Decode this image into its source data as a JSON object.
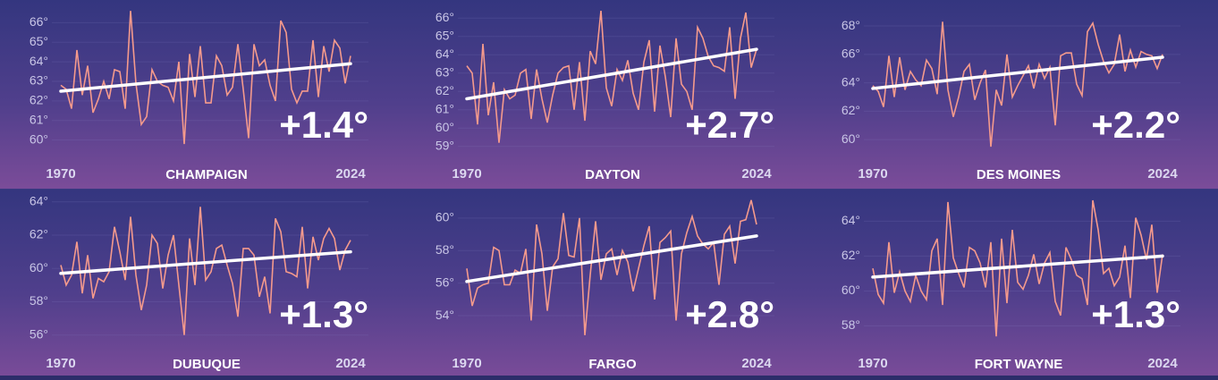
{
  "chart_data": [
    {
      "type": "line",
      "title": "CHAMPAIGN",
      "annotation": "+1.4°",
      "x": [
        1970,
        1971,
        1972,
        1973,
        1974,
        1975,
        1976,
        1977,
        1978,
        1979,
        1980,
        1981,
        1982,
        1983,
        1984,
        1985,
        1986,
        1987,
        1988,
        1989,
        1990,
        1991,
        1992,
        1993,
        1994,
        1995,
        1996,
        1997,
        1998,
        1999,
        2000,
        2001,
        2002,
        2003,
        2004,
        2005,
        2006,
        2007,
        2008,
        2009,
        2010,
        2011,
        2012,
        2013,
        2014,
        2015,
        2016,
        2017,
        2018,
        2019,
        2020,
        2021,
        2022,
        2023,
        2024
      ],
      "series": [
        {
          "color": "#f59a8c",
          "values": [
            62.8,
            62.6,
            61.6,
            64.6,
            62.3,
            63.8,
            61.4,
            62.1,
            63.0,
            62.1,
            63.6,
            63.5,
            61.6,
            66.6,
            62.9,
            60.8,
            61.2,
            63.6,
            63.0,
            62.8,
            62.7,
            62.0,
            64.0,
            59.8,
            64.4,
            62.2,
            64.8,
            61.9,
            61.9,
            64.3,
            63.8,
            62.3,
            62.7,
            64.9,
            62.6,
            60.1,
            64.9,
            63.8,
            64.1,
            62.8,
            62.0,
            66.1,
            65.5,
            62.6,
            61.9,
            62.5,
            62.5,
            65.1,
            62.2,
            64.8,
            63.5,
            65.1,
            64.7,
            62.9,
            64.3
          ]
        }
      ],
      "trend": {
        "x": [
          1970,
          2024
        ],
        "values": [
          62.5,
          63.9
        ],
        "color": "#ffffff"
      },
      "xlim": [
        1970,
        2024
      ],
      "xticks": [
        1970,
        2024
      ],
      "ylim": [
        59.3,
        66.7
      ],
      "yticks": [
        {
          "value": 60,
          "label": "60°"
        },
        {
          "value": 61,
          "label": "61°"
        },
        {
          "value": 62,
          "label": "62°"
        },
        {
          "value": 63,
          "label": "63°"
        },
        {
          "value": 64,
          "label": "64°"
        },
        {
          "value": 65,
          "label": "65°"
        },
        {
          "value": 66,
          "label": "66°"
        }
      ],
      "grid": true
    },
    {
      "type": "line",
      "title": "DAYTON",
      "annotation": "+2.7°",
      "x": [
        1970,
        1971,
        1972,
        1973,
        1974,
        1975,
        1976,
        1977,
        1978,
        1979,
        1980,
        1981,
        1982,
        1983,
        1984,
        1985,
        1986,
        1987,
        1988,
        1989,
        1990,
        1991,
        1992,
        1993,
        1994,
        1995,
        1996,
        1997,
        1998,
        1999,
        2000,
        2001,
        2002,
        2003,
        2004,
        2005,
        2006,
        2007,
        2008,
        2009,
        2010,
        2011,
        2012,
        2013,
        2014,
        2015,
        2016,
        2017,
        2018,
        2019,
        2020,
        2021,
        2022,
        2023,
        2024
      ],
      "series": [
        {
          "color": "#f59a8c",
          "values": [
            63.4,
            63.0,
            60.2,
            64.6,
            60.7,
            62.5,
            59.2,
            62.1,
            61.6,
            61.8,
            63.0,
            63.2,
            60.5,
            63.2,
            61.6,
            60.3,
            61.8,
            63.0,
            63.3,
            63.4,
            61.0,
            63.6,
            60.4,
            64.2,
            63.5,
            66.4,
            62.2,
            61.2,
            63.2,
            62.6,
            63.7,
            61.9,
            61.0,
            63.6,
            64.8,
            60.9,
            64.5,
            62.8,
            60.6,
            64.9,
            62.4,
            62.0,
            61.0,
            65.5,
            64.9,
            63.9,
            63.4,
            63.3,
            63.1,
            65.5,
            61.6,
            64.9,
            66.3,
            63.3,
            64.3
          ]
        }
      ],
      "trend": {
        "x": [
          1970,
          2024
        ],
        "values": [
          61.6,
          64.3
        ],
        "color": "#ffffff"
      },
      "xlim": [
        1970,
        2024
      ],
      "xticks": [
        1970,
        2024
      ],
      "ylim": [
        58.6,
        66.5
      ],
      "yticks": [
        {
          "value": 59,
          "label": "59°"
        },
        {
          "value": 60,
          "label": "60°"
        },
        {
          "value": 61,
          "label": "61°"
        },
        {
          "value": 62,
          "label": "62°"
        },
        {
          "value": 63,
          "label": "63°"
        },
        {
          "value": 64,
          "label": "64°"
        },
        {
          "value": 65,
          "label": "65°"
        },
        {
          "value": 66,
          "label": "66°"
        }
      ],
      "grid": true
    },
    {
      "type": "line",
      "title": "DES MOINES",
      "annotation": "+2.2°",
      "x": [
        1970,
        1971,
        1972,
        1973,
        1974,
        1975,
        1976,
        1977,
        1978,
        1979,
        1980,
        1981,
        1982,
        1983,
        1984,
        1985,
        1986,
        1987,
        1988,
        1989,
        1990,
        1991,
        1992,
        1993,
        1994,
        1995,
        1996,
        1997,
        1998,
        1999,
        2000,
        2001,
        2002,
        2003,
        2004,
        2005,
        2006,
        2007,
        2008,
        2009,
        2010,
        2011,
        2012,
        2013,
        2014,
        2015,
        2016,
        2017,
        2018,
        2019,
        2020,
        2021,
        2022,
        2023,
        2024
      ],
      "series": [
        {
          "color": "#f59a8c",
          "values": [
            63.8,
            63.4,
            62.3,
            65.9,
            63.0,
            65.8,
            63.5,
            64.8,
            64.2,
            63.8,
            65.6,
            65.0,
            63.2,
            68.3,
            63.5,
            61.6,
            63.0,
            64.8,
            65.3,
            62.8,
            64.0,
            64.9,
            59.5,
            63.5,
            62.4,
            66.0,
            63.0,
            63.8,
            64.5,
            65.2,
            63.6,
            65.3,
            64.3,
            65.1,
            61.0,
            65.9,
            66.1,
            66.1,
            63.9,
            63.1,
            67.6,
            68.2,
            66.7,
            65.5,
            64.7,
            65.3,
            67.4,
            64.8,
            66.3,
            65.1,
            66.2,
            66.0,
            65.9,
            65.0,
            66.0
          ]
        }
      ],
      "trend": {
        "x": [
          1970,
          2024
        ],
        "values": [
          63.6,
          65.8
        ],
        "color": "#ffffff"
      },
      "xlim": [
        1970,
        2024
      ],
      "xticks": [
        1970,
        2024
      ],
      "ylim": [
        59.0,
        69.2
      ],
      "yticks": [
        {
          "value": 60,
          "label": "60°"
        },
        {
          "value": 62,
          "label": "62°"
        },
        {
          "value": 64,
          "label": "64°"
        },
        {
          "value": 66,
          "label": "66°"
        },
        {
          "value": 68,
          "label": "68°"
        }
      ],
      "grid": true
    },
    {
      "type": "line",
      "title": "DUBUQUE",
      "annotation": "+1.3°",
      "x": [
        1970,
        1971,
        1972,
        1973,
        1974,
        1975,
        1976,
        1977,
        1978,
        1979,
        1980,
        1981,
        1982,
        1983,
        1984,
        1985,
        1986,
        1987,
        1988,
        1989,
        1990,
        1991,
        1992,
        1993,
        1994,
        1995,
        1996,
        1997,
        1998,
        1999,
        2000,
        2001,
        2002,
        2003,
        2004,
        2005,
        2006,
        2007,
        2008,
        2009,
        2010,
        2011,
        2012,
        2013,
        2014,
        2015,
        2016,
        2017,
        2018,
        2019,
        2020,
        2021,
        2022,
        2023,
        2024
      ],
      "series": [
        {
          "color": "#f59a8c",
          "values": [
            60.2,
            59.0,
            59.6,
            61.6,
            58.5,
            60.8,
            58.2,
            59.4,
            59.2,
            59.8,
            62.5,
            61.0,
            59.3,
            63.1,
            59.6,
            57.5,
            59.0,
            62.0,
            61.5,
            58.8,
            60.8,
            62.0,
            59.0,
            56.0,
            61.8,
            59.0,
            63.7,
            59.3,
            59.8,
            61.2,
            61.4,
            60.2,
            59.1,
            57.1,
            61.2,
            61.2,
            60.8,
            58.3,
            59.5,
            57.3,
            63.0,
            62.2,
            59.8,
            59.7,
            59.5,
            62.5,
            58.8,
            61.9,
            60.5,
            61.8,
            62.4,
            61.8,
            59.9,
            61.1,
            61.7
          ]
        }
      ],
      "trend": {
        "x": [
          1970,
          2024
        ],
        "values": [
          59.7,
          61.0
        ],
        "color": "#ffffff"
      },
      "xlim": [
        1970,
        2024
      ],
      "xticks": [
        1970,
        2024
      ],
      "ylim": [
        55.5,
        64.2
      ],
      "yticks": [
        {
          "value": 56,
          "label": "56°"
        },
        {
          "value": 58,
          "label": "58°"
        },
        {
          "value": 60,
          "label": "60°"
        },
        {
          "value": 62,
          "label": "62°"
        },
        {
          "value": 64,
          "label": "64°"
        }
      ],
      "grid": true
    },
    {
      "type": "line",
      "title": "FARGO",
      "annotation": "+2.8°",
      "x": [
        1970,
        1971,
        1972,
        1973,
        1974,
        1975,
        1976,
        1977,
        1978,
        1979,
        1980,
        1981,
        1982,
        1983,
        1984,
        1985,
        1986,
        1987,
        1988,
        1989,
        1990,
        1991,
        1992,
        1993,
        1994,
        1995,
        1996,
        1997,
        1998,
        1999,
        2000,
        2001,
        2002,
        2003,
        2004,
        2005,
        2006,
        2007,
        2008,
        2009,
        2010,
        2011,
        2012,
        2013,
        2014,
        2015,
        2016,
        2017,
        2018,
        2019,
        2020,
        2021,
        2022,
        2023,
        2024
      ],
      "series": [
        {
          "color": "#f59a8c",
          "values": [
            56.9,
            54.6,
            55.7,
            55.9,
            56.0,
            58.2,
            58.0,
            55.9,
            55.9,
            56.8,
            56.6,
            58.1,
            53.7,
            59.6,
            57.8,
            54.3,
            57.0,
            57.5,
            60.3,
            57.7,
            57.6,
            60.0,
            52.8,
            56.5,
            59.8,
            56.2,
            57.8,
            58.1,
            56.5,
            58.0,
            57.3,
            55.5,
            56.9,
            58.3,
            59.5,
            55.0,
            58.5,
            58.8,
            59.2,
            53.7,
            57.8,
            59.1,
            60.1,
            58.9,
            58.4,
            58.1,
            58.5,
            55.9,
            59.0,
            59.5,
            57.2,
            59.8,
            59.9,
            61.1,
            59.6
          ]
        }
      ],
      "trend": {
        "x": [
          1970,
          2024
        ],
        "values": [
          56.1,
          58.9
        ],
        "color": "#ffffff"
      },
      "xlim": [
        1970,
        2024
      ],
      "xticks": [
        1970,
        2024
      ],
      "ylim": [
        52.3,
        61.2
      ],
      "yticks": [
        {
          "value": 54,
          "label": "54°"
        },
        {
          "value": 56,
          "label": "56°"
        },
        {
          "value": 58,
          "label": "58°"
        },
        {
          "value": 60,
          "label": "60°"
        }
      ],
      "grid": true
    },
    {
      "type": "line",
      "title": "FORT WAYNE",
      "annotation": "+1.3°",
      "x": [
        1970,
        1971,
        1972,
        1973,
        1974,
        1975,
        1976,
        1977,
        1978,
        1979,
        1980,
        1981,
        1982,
        1983,
        1984,
        1985,
        1986,
        1987,
        1988,
        1989,
        1990,
        1991,
        1992,
        1993,
        1994,
        1995,
        1996,
        1997,
        1998,
        1999,
        2000,
        2001,
        2002,
        2003,
        2004,
        2005,
        2006,
        2007,
        2008,
        2009,
        2010,
        2011,
        2012,
        2013,
        2014,
        2015,
        2016,
        2017,
        2018,
        2019,
        2020,
        2021,
        2022,
        2023,
        2024
      ],
      "series": [
        {
          "color": "#f59a8c",
          "values": [
            61.3,
            59.8,
            59.3,
            62.8,
            59.9,
            61.1,
            60.0,
            59.4,
            60.9,
            60.0,
            59.5,
            62.3,
            63.0,
            59.2,
            65.1,
            61.9,
            61.0,
            60.2,
            62.5,
            62.3,
            61.6,
            60.2,
            62.8,
            57.4,
            63.0,
            59.3,
            63.5,
            60.5,
            60.1,
            60.9,
            62.1,
            60.4,
            61.6,
            62.2,
            59.4,
            58.6,
            62.5,
            61.8,
            60.9,
            60.7,
            59.2,
            65.2,
            63.5,
            61.0,
            61.3,
            60.3,
            60.8,
            62.6,
            59.6,
            64.2,
            63.2,
            61.8,
            63.8,
            59.9,
            62.1
          ]
        }
      ],
      "trend": {
        "x": [
          1970,
          2024
        ],
        "values": [
          60.8,
          62.0
        ],
        "color": "#ffffff"
      },
      "xlim": [
        1970,
        2024
      ],
      "xticks": [
        1970,
        2024
      ],
      "ylim": [
        57.0,
        65.3
      ],
      "yticks": [
        {
          "value": 58,
          "label": "58°"
        },
        {
          "value": 60,
          "label": "60°"
        },
        {
          "value": 62,
          "label": "62°"
        },
        {
          "value": 64,
          "label": "64°"
        }
      ],
      "grid": true
    }
  ]
}
